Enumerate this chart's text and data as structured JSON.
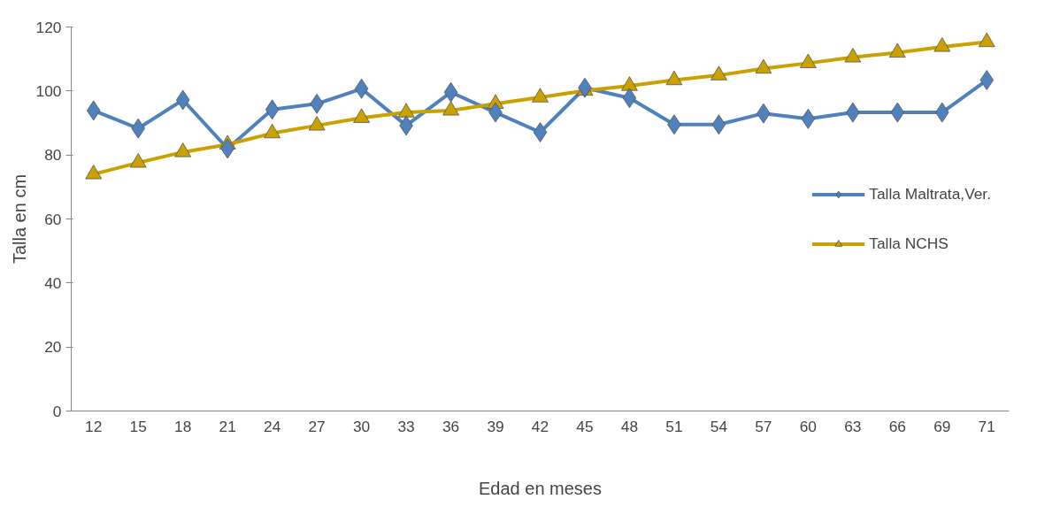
{
  "chart_data": {
    "type": "line",
    "xlabel": "Edad en meses",
    "ylabel": "Talla en cm",
    "categories": [
      "12",
      "15",
      "18",
      "21",
      "24",
      "27",
      "30",
      "33",
      "36",
      "39",
      "42",
      "45",
      "48",
      "51",
      "54",
      "57",
      "60",
      "63",
      "66",
      "69",
      "71"
    ],
    "series": [
      {
        "name": "Talla Maltrata,Ver.",
        "color": "#4f81bd",
        "marker": "diamond",
        "values": [
          93.9,
          88.3,
          97.2,
          82,
          94.2,
          96,
          100.7,
          89.2,
          99.6,
          93.3,
          87.1,
          101,
          97.8,
          89.5,
          89.5,
          93,
          91.3,
          93.3,
          93.3,
          93.3,
          103.4
        ]
      },
      {
        "name": "Talla NCHS",
        "color": "#c9a100",
        "marker": "triangle",
        "values": [
          74,
          77.6,
          80.9,
          83.3,
          86.8,
          89.2,
          91.6,
          93.3,
          93.9,
          96,
          98,
          100.1,
          101.6,
          103.4,
          104.9,
          107,
          108.7,
          110.5,
          112,
          113.8,
          115.3
        ]
      }
    ],
    "ylim": [
      0,
      120
    ],
    "yticks": [
      0,
      20,
      40,
      60,
      80,
      100,
      120
    ],
    "grid": false,
    "legend": "right"
  }
}
